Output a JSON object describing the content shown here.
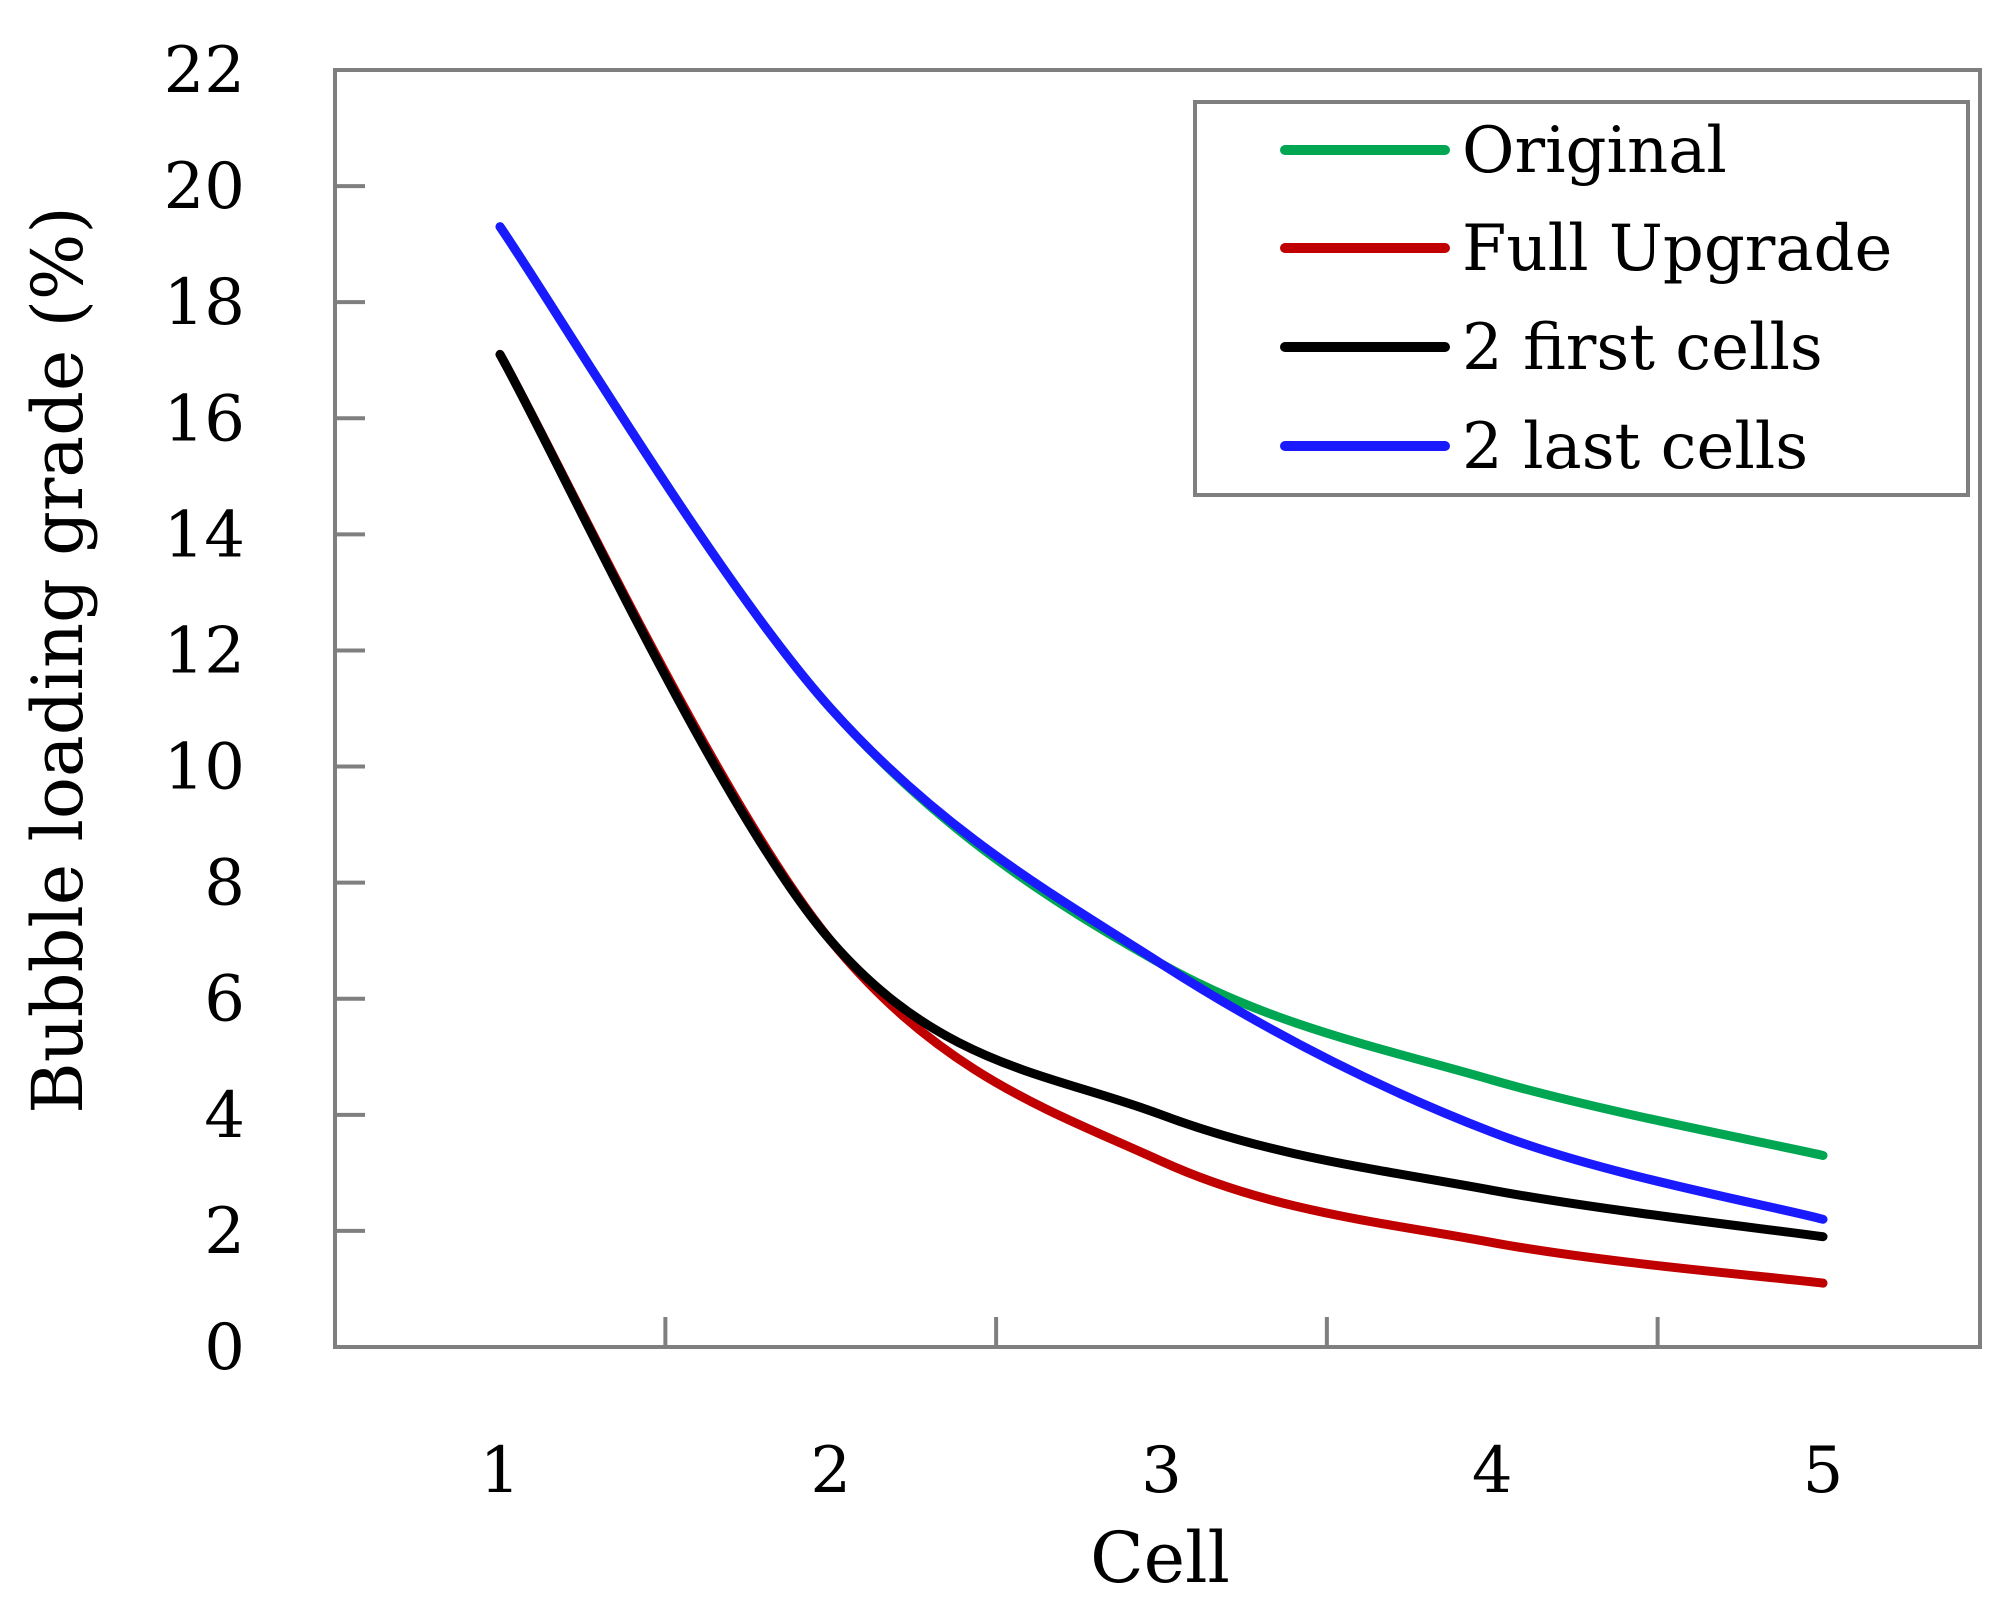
{
  "chart_data": {
    "type": "line",
    "title": "",
    "xlabel": "Cell",
    "ylabel": "Bubble loading grade (%)",
    "x": [
      1,
      2,
      3,
      4,
      5
    ],
    "xticks": [
      "1",
      "2",
      "3",
      "4",
      "5"
    ],
    "ylim": [
      0,
      22
    ],
    "yticks": [
      0,
      2,
      4,
      6,
      8,
      10,
      12,
      14,
      16,
      18,
      20,
      22
    ],
    "grid": false,
    "legend_position": "top-right",
    "series": [
      {
        "name": "Original",
        "color": "#00a651",
        "values": [
          19.3,
          11.0,
          6.6,
          4.6,
          3.3
        ]
      },
      {
        "name": "Full Upgrade",
        "color": "#c00000",
        "values": [
          17.1,
          7.0,
          3.2,
          1.8,
          1.1
        ]
      },
      {
        "name": "2 first cells",
        "color": "#000000",
        "values": [
          17.1,
          7.0,
          4.0,
          2.7,
          1.9
        ]
      },
      {
        "name": "2 last cells",
        "color": "#1a1aff",
        "values": [
          19.3,
          11.0,
          6.6,
          3.7,
          2.2
        ]
      }
    ]
  }
}
